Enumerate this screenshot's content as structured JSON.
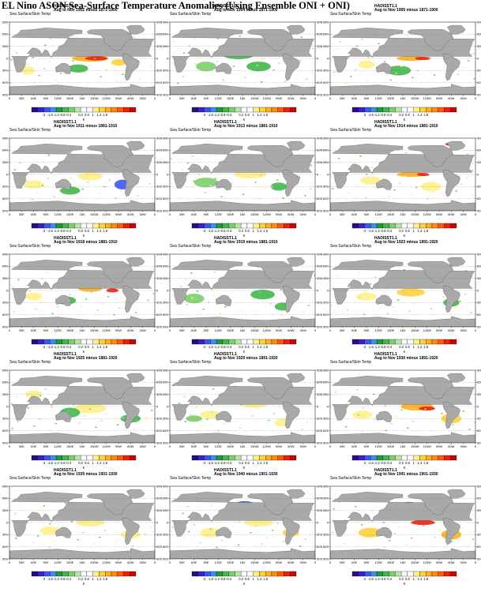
{
  "title": "EL Nino ASON Sea-Surface Temperature Anomalies (Using Ensemble ONI + ONI)",
  "dataset": "HADISST1.1",
  "variable": "Sea Surface/Skin Temp",
  "units": "K",
  "lat_ticks": [
    "90N",
    "60N",
    "30N",
    "0",
    "30S",
    "60S",
    "90S"
  ],
  "lon_ticks": [
    "0",
    "30E",
    "60E",
    "90E",
    "120E",
    "150E",
    "180",
    "150W",
    "120W",
    "90W",
    "60W",
    "30W",
    "0"
  ],
  "colorbar": {
    "labels": [
      "-2",
      "-1.6",
      "-1.2",
      "-0.8",
      "-0.4",
      "0.2",
      "0.6",
      "1",
      "1.4",
      "1.8"
    ],
    "colors": [
      "#2b0a8a",
      "#3a22c8",
      "#3f57ef",
      "#3d8df3",
      "#1a9e3a",
      "#43b84d",
      "#7ccf6a",
      "#b9e6a6",
      "#ffffff",
      "#ffffff",
      "#fff08a",
      "#ffd23a",
      "#ffaf1e",
      "#ff8a14",
      "#ff5a0a",
      "#f21e0a",
      "#c40806"
    ]
  },
  "panels": [
    {
      "period": "Aug to Nov 1902 minus 1871-1900"
    },
    {
      "period": "Aug to Nov 1904 minus 1871-1900"
    },
    {
      "period": "Aug to Nov 1905 minus 1871-1900"
    },
    {
      "period": "Aug to Nov 1911 minus 1881-1910"
    },
    {
      "period": "Aug to Nov 1913 minus 1881-1910"
    },
    {
      "period": "Aug to Nov 1914 minus 1881-1910"
    },
    {
      "period": "Aug to Nov 1918 minus 1881-1910"
    },
    {
      "period": "Aug to Nov 1919 minus 1881-1910"
    },
    {
      "period": "Aug to Nov 1923 minus 1891-1920"
    },
    {
      "period": "Aug to Nov 1925 minus 1881-1920"
    },
    {
      "period": "Aug to Nov 1929 minus 1891-1920"
    },
    {
      "period": "Aug to Nov 1930 minus 1891-1920"
    },
    {
      "period": "Aug to Nov 1939 minus 1901-1930"
    },
    {
      "period": "Aug to Nov 1940 minus 1901-1930"
    },
    {
      "period": "Aug to Nov 1941 minus 1901-1930"
    }
  ]
}
